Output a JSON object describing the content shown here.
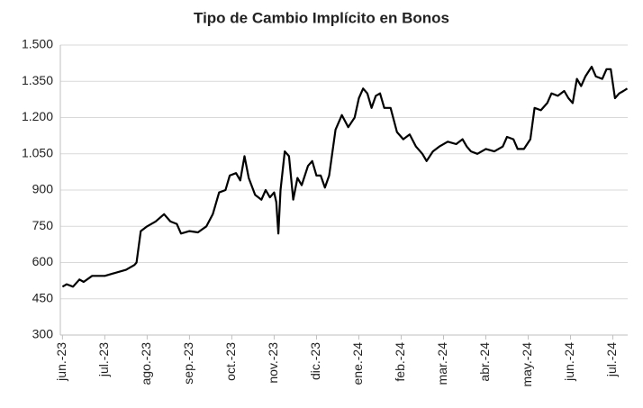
{
  "chart_data": {
    "type": "line",
    "title": "Tipo de Cambio Implícito en Bonos",
    "xlim": [
      -0.05,
      13.35
    ],
    "xticks": [
      {
        "value": 0,
        "label": "jun.-23"
      },
      {
        "value": 1,
        "label": "jul.-23"
      },
      {
        "value": 2,
        "label": "ago.-23"
      },
      {
        "value": 3,
        "label": "sep.-23"
      },
      {
        "value": 4,
        "label": "oct.-23"
      },
      {
        "value": 5,
        "label": "nov.-23"
      },
      {
        "value": 6,
        "label": "dic.-23"
      },
      {
        "value": 7,
        "label": "ene.-24"
      },
      {
        "value": 8,
        "label": "feb.-24"
      },
      {
        "value": 9,
        "label": "mar.-24"
      },
      {
        "value": 10,
        "label": "abr.-24"
      },
      {
        "value": 11,
        "label": "may.-24"
      },
      {
        "value": 12,
        "label": "jun.-24"
      },
      {
        "value": 13,
        "label": "jul.-24"
      }
    ],
    "ylim": [
      300,
      1500
    ],
    "yticks": [
      300,
      450,
      600,
      750,
      900,
      {
        "value": 1050,
        "label": "1.050"
      },
      {
        "value": 1200,
        "label": "1.200"
      },
      {
        "value": 1350,
        "label": "1.350"
      },
      {
        "value": 1500,
        "label": "1.500"
      }
    ],
    "grid": true,
    "x": [
      0,
      0.1,
      0.25,
      0.4,
      0.5,
      0.7,
      0.85,
      1.0,
      1.2,
      1.5,
      1.7,
      1.75,
      1.85,
      2.0,
      2.2,
      2.4,
      2.55,
      2.7,
      2.8,
      3.0,
      3.2,
      3.4,
      3.55,
      3.7,
      3.85,
      3.95,
      4.1,
      4.2,
      4.3,
      4.4,
      4.55,
      4.7,
      4.8,
      4.9,
      5.0,
      5.05,
      5.1,
      5.15,
      5.25,
      5.35,
      5.45,
      5.55,
      5.65,
      5.8,
      5.9,
      6.0,
      6.1,
      6.2,
      6.3,
      6.45,
      6.6,
      6.75,
      6.9,
      7.0,
      7.1,
      7.2,
      7.3,
      7.4,
      7.5,
      7.6,
      7.75,
      7.9,
      8.05,
      8.2,
      8.35,
      8.5,
      8.6,
      8.75,
      8.9,
      9.1,
      9.3,
      9.45,
      9.55,
      9.65,
      9.8,
      10.0,
      10.2,
      10.4,
      10.5,
      10.65,
      10.75,
      10.9,
      11.05,
      11.15,
      11.3,
      11.45,
      11.55,
      11.7,
      11.85,
      11.95,
      12.05,
      12.15,
      12.25,
      12.35,
      12.5,
      12.6,
      12.75,
      12.85,
      12.95,
      13.05,
      13.15,
      13.25,
      13.34
    ],
    "series": [
      {
        "color": "#000000",
        "values": [
          500,
          510,
          500,
          530,
          520,
          545,
          545,
          545,
          555,
          570,
          590,
          600,
          730,
          750,
          770,
          800,
          770,
          760,
          720,
          730,
          725,
          750,
          800,
          890,
          900,
          960,
          970,
          940,
          1040,
          950,
          880,
          860,
          900,
          870,
          890,
          850,
          720,
          900,
          1060,
          1040,
          860,
          950,
          920,
          1000,
          1020,
          960,
          960,
          910,
          960,
          1150,
          1210,
          1160,
          1200,
          1280,
          1320,
          1300,
          1240,
          1290,
          1300,
          1240,
          1240,
          1140,
          1110,
          1130,
          1080,
          1050,
          1020,
          1060,
          1080,
          1100,
          1090,
          1110,
          1080,
          1060,
          1050,
          1070,
          1060,
          1080,
          1120,
          1110,
          1070,
          1070,
          1110,
          1240,
          1230,
          1260,
          1300,
          1290,
          1310,
          1280,
          1260,
          1360,
          1330,
          1370,
          1410,
          1370,
          1360,
          1400,
          1400,
          1280,
          1300,
          1310,
          1320
        ]
      }
    ]
  }
}
